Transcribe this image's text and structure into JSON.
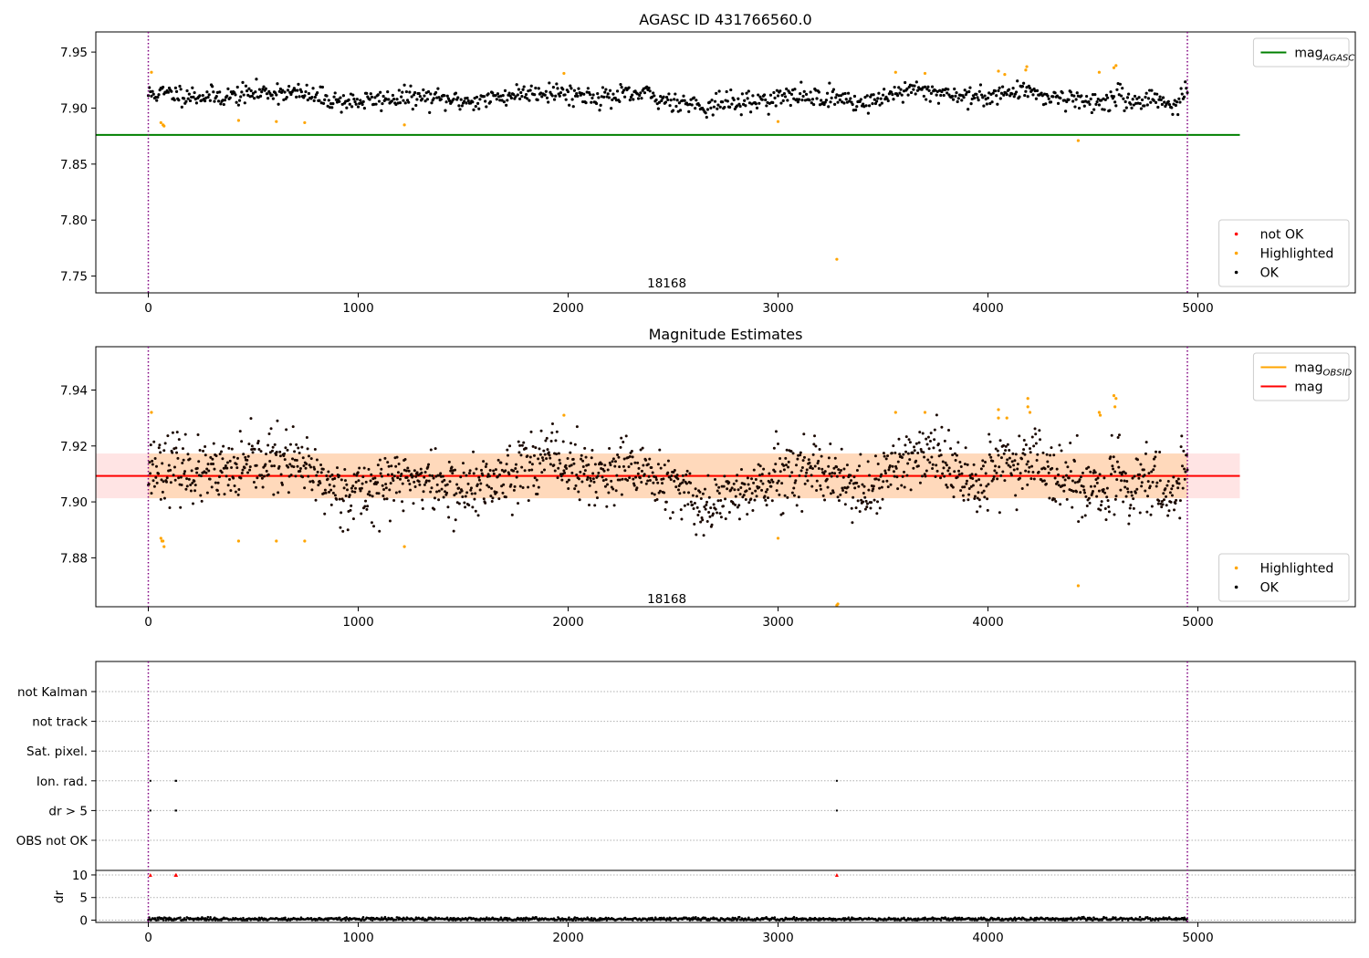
{
  "chart_data": [
    {
      "type": "scatter",
      "title": "AGASC ID 431766560.0",
      "xlabel": "",
      "ylabel": "",
      "xlim": [
        -250,
        5750
      ],
      "ylim": [
        7.735,
        7.968
      ],
      "xticks": [
        0,
        1000,
        2000,
        3000,
        4000,
        5000
      ],
      "yticks": [
        7.75,
        7.8,
        7.85,
        7.9,
        7.95
      ],
      "ytick_labels": [
        "7.75",
        "7.80",
        "7.85",
        "7.90",
        "7.95"
      ],
      "obsid_annotation": {
        "text": "18168",
        "x": 2470,
        "y": 7.744
      },
      "vlines": [
        {
          "x": 0,
          "color": "#800080",
          "style": "dotted"
        },
        {
          "x": 4950,
          "color": "#800080",
          "style": "dotted"
        }
      ],
      "hlines": [
        {
          "name": "mag_AGASC",
          "y": 7.876,
          "x_range": [
            -250,
            5200
          ],
          "color": "#008000"
        }
      ],
      "scatter_model": {
        "x_range": [
          0,
          4950
        ],
        "mean": 7.91,
        "step": 5
      },
      "series": [
        {
          "name": "not OK",
          "color": "#ff0000",
          "points": []
        },
        {
          "name": "Highlighted",
          "color": "#ffa500",
          "points": [
            [
              15,
              7.932
            ],
            [
              60,
              7.887
            ],
            [
              70,
              7.885
            ],
            [
              75,
              7.884
            ],
            [
              430,
              7.889
            ],
            [
              610,
              7.888
            ],
            [
              745,
              7.887
            ],
            [
              1220,
              7.885
            ],
            [
              1980,
              7.931
            ],
            [
              3000,
              7.888
            ],
            [
              3280,
              7.765
            ],
            [
              3560,
              7.932
            ],
            [
              3700,
              7.931
            ],
            [
              4050,
              7.933
            ],
            [
              4080,
              7.93
            ],
            [
              4180,
              7.934
            ],
            [
              4185,
              7.937
            ],
            [
              4430,
              7.871
            ],
            [
              4530,
              7.932
            ],
            [
              4600,
              7.936
            ],
            [
              4610,
              7.938
            ]
          ]
        },
        {
          "name": "OK",
          "color": "#000000"
        }
      ],
      "legends": [
        {
          "entries": [
            {
              "label": "mag",
              "sub": "AGASC",
              "type": "line",
              "color": "#008000"
            }
          ],
          "position": "upper right"
        },
        {
          "entries": [
            {
              "label": "not OK",
              "type": "dot",
              "color": "#ff0000"
            },
            {
              "label": "Highlighted",
              "type": "dot",
              "color": "#ffa500"
            },
            {
              "label": "OK",
              "type": "dot",
              "color": "#000000"
            }
          ],
          "position": "lower right"
        }
      ]
    },
    {
      "type": "scatter",
      "title": "Magnitude Estimates",
      "xlabel": "",
      "ylabel": "",
      "xlim": [
        -250,
        5750
      ],
      "ylim": [
        7.8625,
        7.9555
      ],
      "xticks": [
        0,
        1000,
        2000,
        3000,
        4000,
        5000
      ],
      "yticks": [
        7.88,
        7.9,
        7.92,
        7.94
      ],
      "ytick_labels": [
        "7.88",
        "7.90",
        "7.92",
        "7.94"
      ],
      "obsid_annotation": {
        "text": "18168",
        "x": 2470,
        "y": 7.8655
      },
      "vlines": [
        {
          "x": 0,
          "color": "#800080",
          "style": "dotted"
        },
        {
          "x": 4950,
          "color": "#800080",
          "style": "dotted"
        }
      ],
      "band": {
        "y0": 7.9013,
        "y1": 7.9173,
        "x_range": [
          -250,
          5200
        ],
        "color": "#ffb3b3"
      },
      "band_obsid": {
        "y0": 7.9013,
        "y1": 7.9173,
        "x_range": [
          0,
          4950
        ],
        "color": "#ffa500"
      },
      "hlines": [
        {
          "name": "mag_OBSID",
          "y": 7.9093,
          "x_range": [
            0,
            4950
          ],
          "color": "#ffa500"
        },
        {
          "name": "mag",
          "y": 7.9093,
          "x_range": [
            -250,
            5200
          ],
          "color": "#ff0000"
        }
      ],
      "scatter_model": {
        "x_range": [
          0,
          4950
        ],
        "mean": 7.909,
        "step": 3
      },
      "series": [
        {
          "name": "Highlighted",
          "color": "#ffa500",
          "points": [
            [
              15,
              7.932
            ],
            [
              60,
              7.887
            ],
            [
              65,
              7.886
            ],
            [
              70,
              7.886
            ],
            [
              75,
              7.884
            ],
            [
              430,
              7.886
            ],
            [
              610,
              7.886
            ],
            [
              745,
              7.886
            ],
            [
              1220,
              7.884
            ],
            [
              1980,
              7.931
            ],
            [
              3000,
              7.887
            ],
            [
              3280,
              7.863
            ],
            [
              3285,
              7.8635
            ],
            [
              3560,
              7.932
            ],
            [
              3700,
              7.932
            ],
            [
              4050,
              7.933
            ],
            [
              4050,
              7.93
            ],
            [
              4090,
              7.93
            ],
            [
              4190,
              7.937
            ],
            [
              4190,
              7.934
            ],
            [
              4200,
              7.932
            ],
            [
              4430,
              7.87
            ],
            [
              4530,
              7.932
            ],
            [
              4535,
              7.931
            ],
            [
              4600,
              7.938
            ],
            [
              4610,
              7.937
            ],
            [
              4605,
              7.934
            ]
          ]
        },
        {
          "name": "OK",
          "color": "#000000"
        }
      ],
      "legends": [
        {
          "entries": [
            {
              "label": "mag",
              "sub": "OBSID",
              "type": "line",
              "color": "#ffa500"
            },
            {
              "label": "mag",
              "type": "line",
              "color": "#ff0000"
            }
          ],
          "position": "upper right"
        },
        {
          "entries": [
            {
              "label": "Highlighted",
              "type": "dot",
              "color": "#ffa500"
            },
            {
              "label": "OK",
              "type": "dot",
              "color": "#000000"
            }
          ],
          "position": "lower right"
        }
      ]
    },
    {
      "type": "scatter",
      "title": "",
      "xlabel": "",
      "ylabel": "",
      "xlim": [
        -250,
        5750
      ],
      "flag_rows": [
        "not Kalman",
        "not track",
        "Sat. pixel.",
        "Ion. rad.",
        "dr > 5",
        "OBS not OK"
      ],
      "vlines": [
        {
          "x": 0,
          "color": "#800080",
          "style": "dotted"
        },
        {
          "x": 4950,
          "color": "#800080",
          "style": "dotted"
        }
      ],
      "flag_points": [
        {
          "row": "Ion. rad.",
          "x": [
            10,
            130,
            133,
            3280
          ]
        },
        {
          "row": "dr > 5",
          "x": [
            10,
            130,
            133,
            3280
          ]
        }
      ]
    },
    {
      "type": "scatter",
      "title": "",
      "xlabel": "",
      "ylabel": "dr",
      "xlim": [
        -250,
        5750
      ],
      "ylim": [
        -0.5,
        11.0
      ],
      "xticks": [
        0,
        1000,
        2000,
        3000,
        4000,
        5000
      ],
      "yticks": [
        0,
        5,
        10
      ],
      "ytick_labels": [
        "0",
        "5",
        "10"
      ],
      "vlines": [
        {
          "x": 0,
          "color": "#800080",
          "style": "dotted"
        },
        {
          "x": 4950,
          "color": "#800080",
          "style": "dotted"
        }
      ],
      "series": [
        {
          "name": "dr clipped",
          "color": "#ff0000",
          "marker": "triangle",
          "points": [
            [
              10,
              10
            ],
            [
              130,
              10
            ],
            [
              133,
              10
            ],
            [
              3280,
              10
            ]
          ]
        },
        {
          "name": "dr",
          "color": "#000000",
          "points_model": {
            "x_range": [
              0,
              4950
            ],
            "mean": 0.25,
            "step": 4
          }
        }
      ]
    }
  ]
}
